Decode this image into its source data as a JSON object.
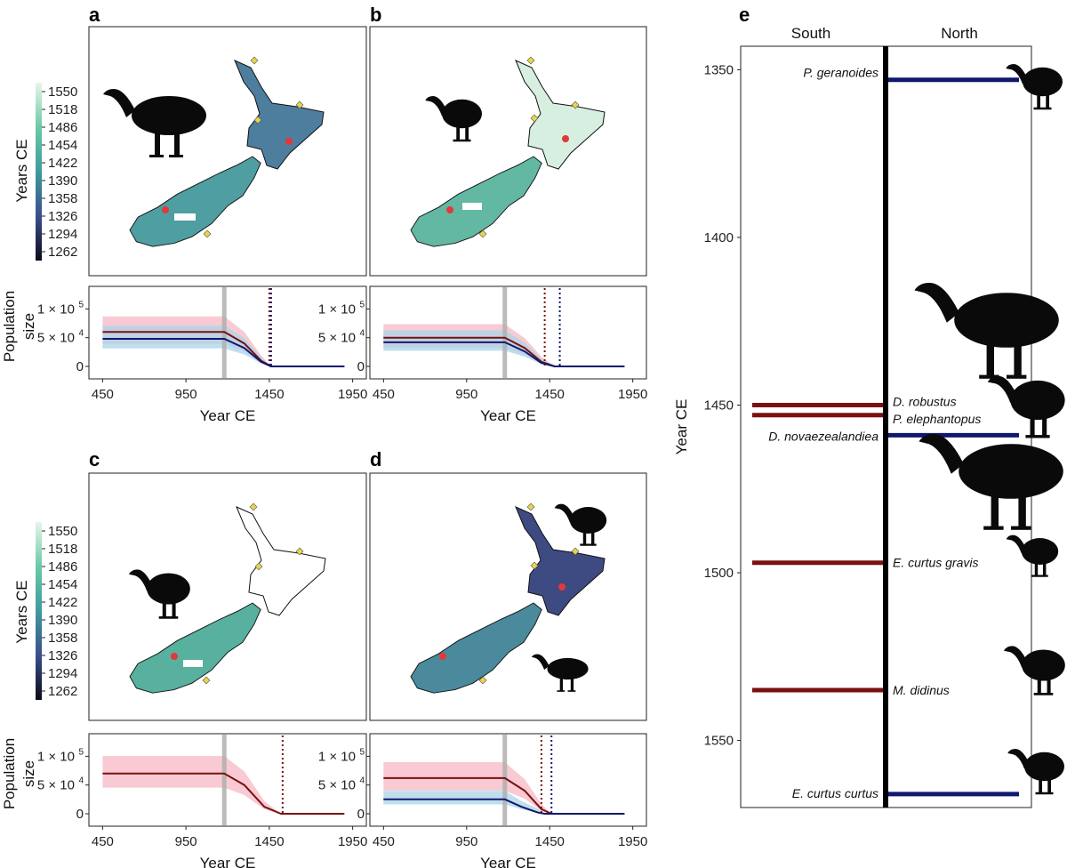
{
  "panels": {
    "a": {
      "letter": "a"
    },
    "b": {
      "letter": "b"
    },
    "c": {
      "letter": "c"
    },
    "d": {
      "letter": "d"
    },
    "e": {
      "letter": "e"
    }
  },
  "colors": {
    "south": "#7a1010",
    "north": "#10186e",
    "south_band": "#f7b8c4",
    "north_band": "#a9d4ea",
    "arrival": "#b0b0b0",
    "dot": "#e23838",
    "diamond": "#e8d44a",
    "silhouette": "#0a0a0a"
  },
  "colorbar": {
    "label": "Years CE",
    "ticks": [
      "1550",
      "1518",
      "1486",
      "1454",
      "1422",
      "1390",
      "1358",
      "1326",
      "1294",
      "1262"
    ]
  },
  "pop_axis": {
    "ylabel_line1": "Population",
    "ylabel_line2": "size",
    "yticks": [
      "1 × 10",
      "5 × 10",
      "0"
    ],
    "ytick_exps": [
      "5",
      "4",
      ""
    ],
    "xlabel": "Year CE",
    "xticks": [
      "450",
      "950",
      "1450",
      "1950"
    ]
  },
  "chart_data": [
    {
      "panel": "a",
      "type": "line",
      "xlabel": "Year CE",
      "ylabel": "Population size",
      "xlim": [
        400,
        2000
      ],
      "ylim": [
        0,
        130000
      ],
      "arrival": 1180,
      "extinction_lines": [
        1450,
        1450
      ],
      "series": [
        {
          "name": "South",
          "x": [
            450,
            1180,
            1300,
            1400,
            1460,
            1900
          ],
          "values": [
            60000,
            60000,
            40000,
            10000,
            0,
            0
          ]
        },
        {
          "name": "North",
          "x": [
            450,
            1180,
            1300,
            1400,
            1460,
            1900
          ],
          "values": [
            48000,
            48000,
            32000,
            8000,
            0,
            0
          ]
        }
      ]
    },
    {
      "panel": "b",
      "type": "line",
      "xlabel": "Year CE",
      "ylabel": "Population size",
      "xlim": [
        400,
        2000
      ],
      "ylim": [
        0,
        130000
      ],
      "arrival": 1180,
      "extinction_lines": [
        1420,
        1500
      ],
      "series": [
        {
          "name": "South",
          "x": [
            450,
            1180,
            1300,
            1400,
            1480,
            1900
          ],
          "values": [
            50000,
            50000,
            32000,
            8000,
            0,
            0
          ]
        },
        {
          "name": "North",
          "x": [
            450,
            1180,
            1300,
            1400,
            1480,
            1900
          ],
          "values": [
            42000,
            42000,
            26000,
            6000,
            0,
            0
          ]
        }
      ]
    },
    {
      "panel": "c",
      "type": "line",
      "xlabel": "Year CE",
      "ylabel": "Population size",
      "xlim": [
        400,
        2000
      ],
      "ylim": [
        0,
        130000
      ],
      "arrival": 1180,
      "extinction_lines": [
        1530
      ],
      "series": [
        {
          "name": "South",
          "x": [
            450,
            1180,
            1300,
            1420,
            1520,
            1900
          ],
          "values": [
            70000,
            70000,
            50000,
            12000,
            0,
            0
          ]
        }
      ]
    },
    {
      "panel": "d",
      "type": "line",
      "xlabel": "Year CE",
      "ylabel": "Population size",
      "xlim": [
        400,
        2000
      ],
      "ylim": [
        0,
        130000
      ],
      "arrival": 1180,
      "extinction_lines": [
        1400,
        1450
      ],
      "series": [
        {
          "name": "South",
          "x": [
            450,
            1180,
            1300,
            1400,
            1460,
            1900
          ],
          "values": [
            62000,
            62000,
            40000,
            8000,
            0,
            0
          ]
        },
        {
          "name": "North",
          "x": [
            450,
            1180,
            1280,
            1380,
            1420,
            1900
          ],
          "values": [
            25000,
            25000,
            12000,
            2000,
            0,
            0
          ]
        }
      ]
    },
    {
      "panel": "e",
      "type": "timeline",
      "ylabel": "Year CE",
      "ylim": [
        1343,
        1570
      ],
      "yticks": [
        1350,
        1400,
        1450,
        1500,
        1550
      ],
      "south_label": "South",
      "north_label": "North",
      "species": [
        {
          "name": "P. geranoides",
          "year": 1353,
          "side": "North"
        },
        {
          "name": "D. robustus",
          "year": 1450,
          "side": "South"
        },
        {
          "name": "P. elephantopus",
          "year": 1453,
          "side": "South"
        },
        {
          "name": "D. novaezealandiea",
          "year": 1459,
          "side": "North"
        },
        {
          "name": "E. curtus gravis",
          "year": 1497,
          "side": "South"
        },
        {
          "name": "M. didinus",
          "year": 1535,
          "side": "South"
        },
        {
          "name": "E. curtus curtus",
          "year": 1566,
          "side": "North"
        }
      ]
    }
  ]
}
